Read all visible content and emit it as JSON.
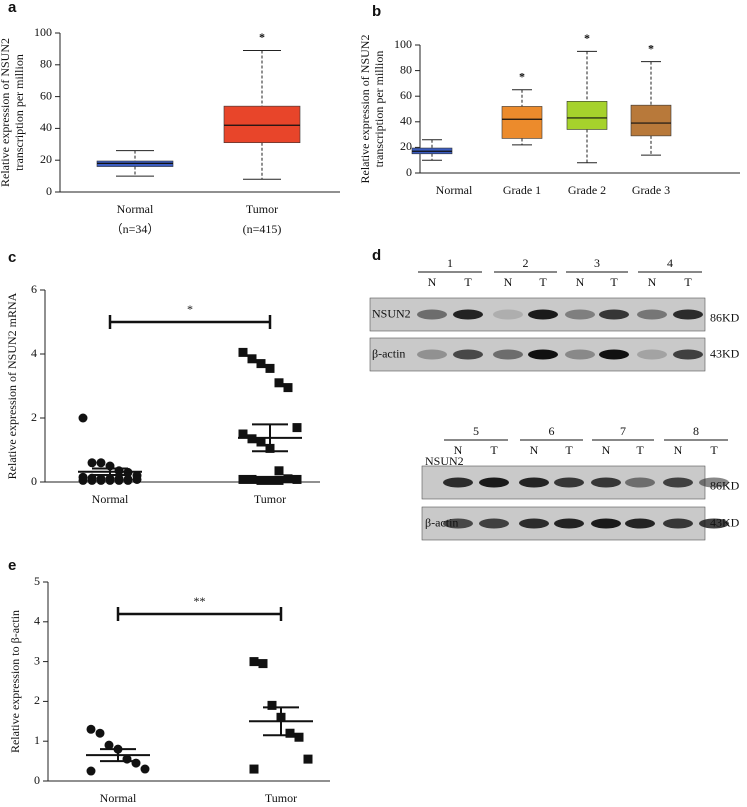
{
  "chart_data": [
    {
      "type": "box",
      "panel": "a",
      "ylabel": [
        "Relative expression of NSUN2",
        "transcription per million"
      ],
      "categories": [
        "Normal",
        "Tumor"
      ],
      "sublabels": [
        "（n=34）",
        "(n=415)"
      ],
      "boxes": [
        {
          "min": 10,
          "q1": 16,
          "median": 18,
          "q3": 19.5,
          "max": 26
        },
        {
          "min": 8,
          "q1": 31,
          "median": 42,
          "q3": 54,
          "max": 89
        }
      ],
      "colors": [
        "#3b5cc0",
        "#e8452a"
      ],
      "significance": [
        {
          "index": 1,
          "label": "*"
        }
      ],
      "ylim": [
        0,
        100
      ],
      "yticks": [
        0,
        20,
        40,
        60,
        80,
        100
      ]
    },
    {
      "type": "box",
      "panel": "b",
      "ylabel": [
        "Relative expression of NSUN2",
        "transcription per million"
      ],
      "categories": [
        "Normal",
        "Grade 1",
        "Grade 2",
        "Grade 3"
      ],
      "boxes": [
        {
          "min": 10,
          "q1": 15,
          "median": 17,
          "q3": 19.5,
          "max": 26
        },
        {
          "min": 22,
          "q1": 27,
          "median": 42,
          "q3": 52,
          "max": 65
        },
        {
          "min": 8,
          "q1": 34,
          "median": 43,
          "q3": 56,
          "max": 95
        },
        {
          "min": 14,
          "q1": 29,
          "median": 39,
          "q3": 53,
          "max": 87
        }
      ],
      "colors": [
        "#3b5cc0",
        "#ec8b2c",
        "#a6d22c",
        "#b8793a"
      ],
      "significance": [
        {
          "index": 1,
          "label": "*"
        },
        {
          "index": 2,
          "label": "*"
        },
        {
          "index": 3,
          "label": "*"
        }
      ],
      "ylim": [
        0,
        100
      ],
      "yticks": [
        0,
        20,
        40,
        60,
        80,
        100
      ]
    },
    {
      "type": "dot",
      "panel": "c",
      "ylabel": [
        "Relative expression of NSUN2 mRNA"
      ],
      "categories": [
        "Normal",
        "Tumor"
      ],
      "groups": [
        {
          "marker": "circle",
          "mean": 0.32,
          "sem": 0.1,
          "values": [
            2.0,
            0.6,
            0.6,
            0.5,
            0.35,
            0.3,
            0.2,
            0.15,
            0.12,
            0.1,
            0.1,
            0.1,
            0.08,
            0.08,
            0.05,
            0.05,
            0.05,
            0.05,
            0.05,
            0.05
          ]
        },
        {
          "marker": "square",
          "mean": 1.38,
          "sem": 0.42,
          "values": [
            4.05,
            3.85,
            3.7,
            3.55,
            3.1,
            2.95,
            1.7,
            1.5,
            1.35,
            1.25,
            1.05,
            0.35,
            0.1,
            0.08,
            0.08,
            0.08,
            0.05,
            0.05,
            0.05
          ]
        }
      ],
      "comparison": "*",
      "ylim": [
        0,
        6
      ],
      "yticks": [
        0,
        2,
        4,
        6
      ]
    },
    {
      "type": "dot",
      "panel": "e",
      "ylabel": [
        "Relative expression to β-actin"
      ],
      "categories": [
        "Normal",
        "Tumor"
      ],
      "groups": [
        {
          "marker": "circle",
          "mean": 0.65,
          "sem": 0.15,
          "values": [
            1.3,
            1.2,
            0.9,
            0.8,
            0.55,
            0.45,
            0.3,
            0.25
          ]
        },
        {
          "marker": "square",
          "mean": 1.5,
          "sem": 0.35,
          "values": [
            3.0,
            2.95,
            1.9,
            1.6,
            1.2,
            1.1,
            0.55,
            0.3
          ]
        }
      ],
      "comparison": "**",
      "ylim": [
        0,
        5
      ],
      "yticks": [
        0,
        1,
        2,
        3,
        4,
        5
      ]
    }
  ],
  "blot": {
    "panel": "d",
    "lane_labels": [
      "N",
      "T"
    ],
    "rows": [
      {
        "label": "NSUN2",
        "size": "86KD"
      },
      {
        "label": "β-actin",
        "size": "43KD"
      }
    ],
    "blocks": [
      {
        "samples": [
          "1",
          "2",
          "3",
          "4"
        ]
      },
      {
        "samples": [
          "5",
          "6",
          "7",
          "8"
        ]
      }
    ]
  }
}
